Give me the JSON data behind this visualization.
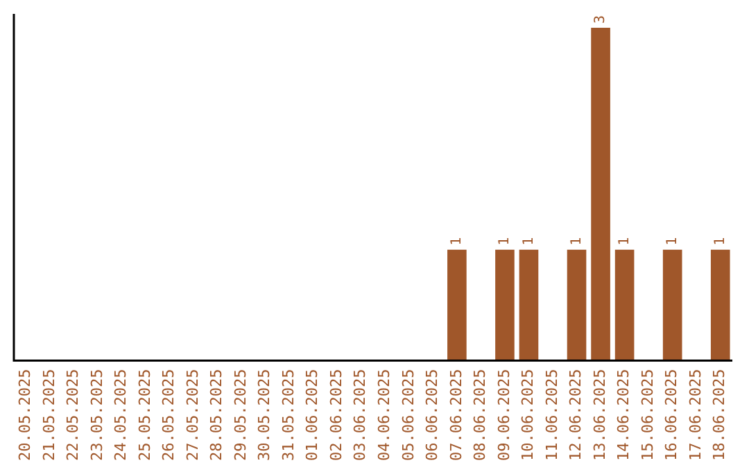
{
  "chart_data": {
    "type": "bar",
    "categories": [
      "20.05.2025",
      "21.05.2025",
      "22.05.2025",
      "23.05.2025",
      "24.05.2025",
      "25.05.2025",
      "26.05.2025",
      "27.05.2025",
      "28.05.2025",
      "29.05.2025",
      "30.05.2025",
      "31.05.2025",
      "01.06.2025",
      "02.06.2025",
      "03.06.2025",
      "04.06.2025",
      "05.06.2025",
      "06.06.2025",
      "07.06.2025",
      "08.06.2025",
      "09.06.2025",
      "10.06.2025",
      "11.06.2025",
      "12.06.2025",
      "13.06.2025",
      "14.06.2025",
      "15.06.2025",
      "16.06.2025",
      "17.06.2025",
      "18.06.2025"
    ],
    "values": [
      null,
      null,
      null,
      null,
      null,
      null,
      null,
      null,
      null,
      null,
      null,
      null,
      null,
      null,
      null,
      null,
      null,
      null,
      1,
      null,
      1,
      1,
      null,
      1,
      3,
      1,
      null,
      1,
      null,
      1
    ],
    "value_labels": [
      null,
      null,
      null,
      null,
      null,
      null,
      null,
      null,
      null,
      null,
      null,
      null,
      null,
      null,
      null,
      null,
      null,
      null,
      "1",
      null,
      "1",
      "1",
      null,
      "1",
      "3",
      "1",
      null,
      "1",
      null,
      "1"
    ],
    "color": "#a0572a",
    "grid": false,
    "legend": false
  }
}
